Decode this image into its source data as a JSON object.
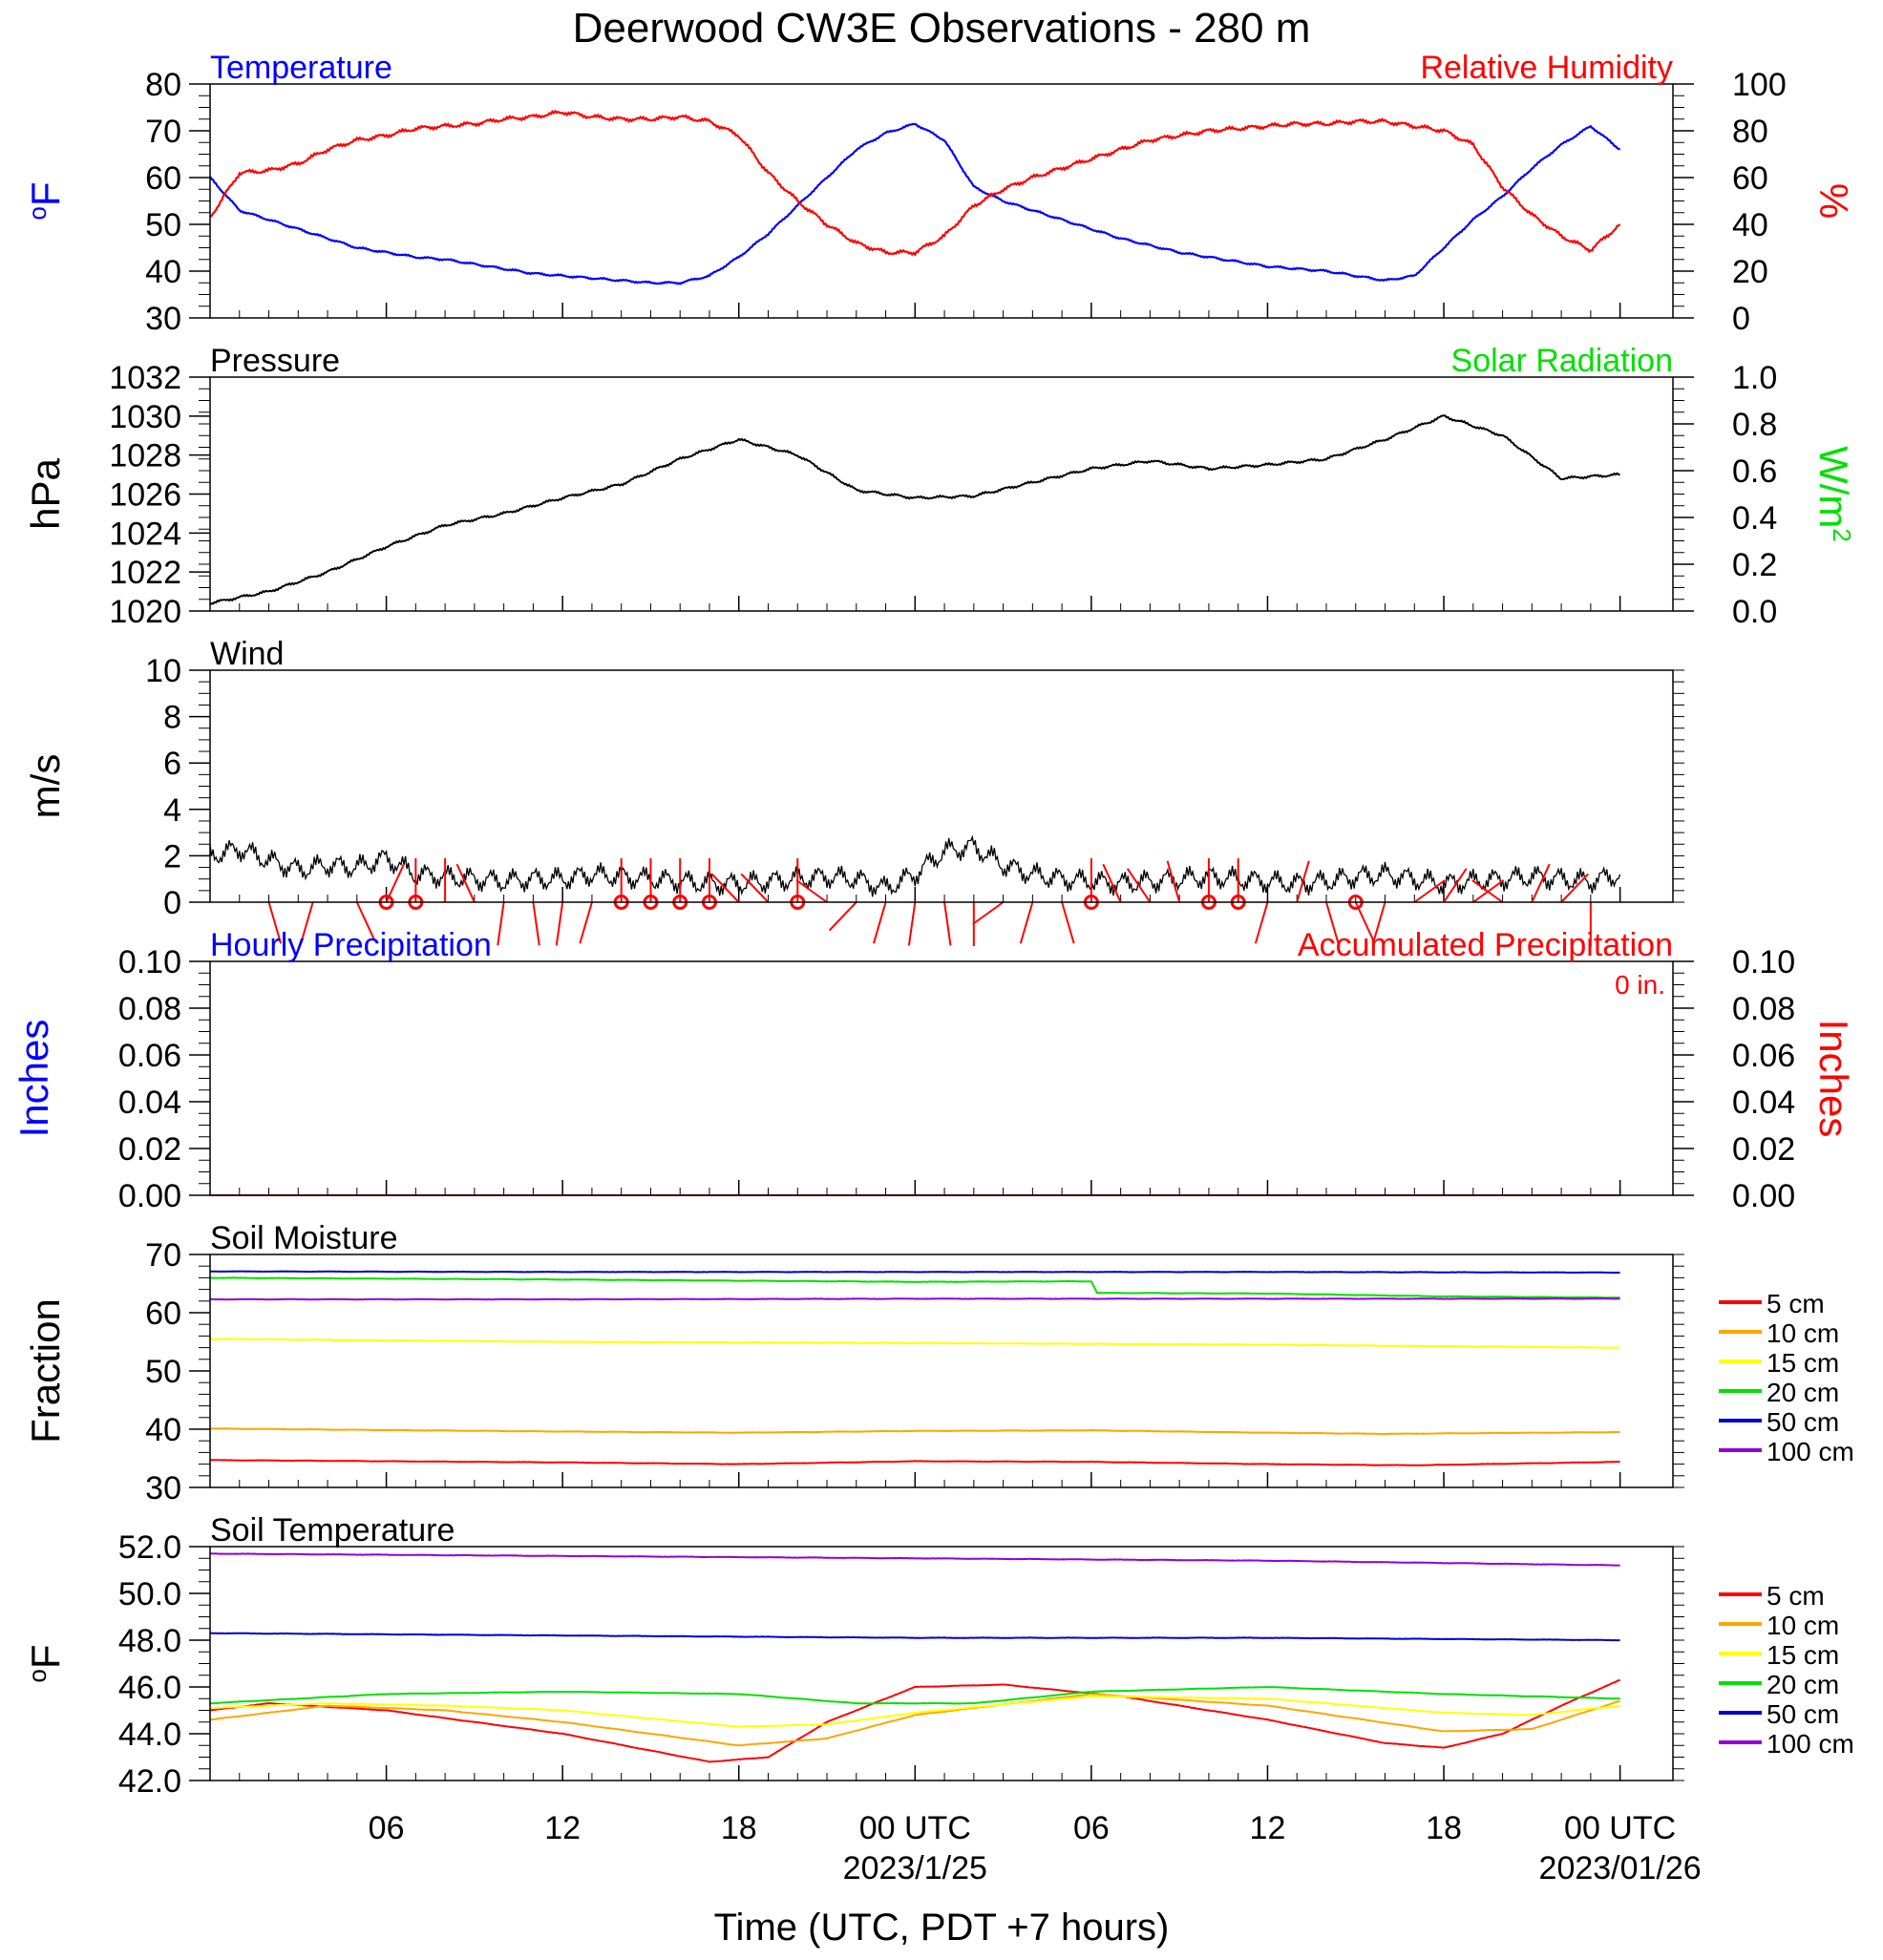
{
  "title": "Deerwood CW3E Observations - 280 m",
  "x_axis": {
    "label": "Time (UTC, PDT +7 hours)",
    "tick_hours": [
      6,
      12,
      18,
      24,
      30,
      36,
      42,
      48
    ],
    "tick_labels": [
      "06",
      "12",
      "18",
      "00 UTC",
      "06",
      "12",
      "18",
      "00 UTC"
    ],
    "date_labels": [
      {
        "hour": 24,
        "text": "2023/1/25"
      },
      {
        "hour": 48,
        "text": "2023/01/26"
      }
    ]
  },
  "colors": {
    "temperature": "#0000ff",
    "humidity": "#ff0000",
    "solar": "#00e000",
    "pressure": "#000000",
    "wind": "#000000",
    "barb": "#ff0000"
  },
  "chart_data": [
    {
      "type": "line",
      "panel": "temperature",
      "title_left": "Temperature",
      "title_right": "Relative Humidity",
      "ylabel_left": "oF",
      "ylabel_right": "%",
      "ylim_left": [
        30,
        80
      ],
      "ylim_right": [
        0,
        100
      ],
      "yticks_left": [
        "30",
        "40",
        "50",
        "60",
        "70",
        "80"
      ],
      "yticks_right": [
        "0",
        "20",
        "40",
        "60",
        "80",
        "100"
      ],
      "series": [
        {
          "name": "Temperature",
          "axis": "left",
          "color": "#0000ff",
          "x": [
            0,
            1,
            2,
            3,
            4,
            5,
            6,
            7,
            8,
            9,
            10,
            11,
            12,
            13,
            14,
            15,
            16,
            17,
            18,
            19,
            20,
            21,
            22,
            23,
            24,
            25,
            26,
            27,
            28,
            29,
            30,
            31,
            32,
            33,
            34,
            35,
            36,
            37,
            38,
            39,
            40,
            41,
            42,
            43,
            44,
            45,
            46,
            47,
            48
          ],
          "y": [
            60,
            53,
            51,
            49,
            47,
            45,
            44,
            43,
            42.5,
            41.5,
            40.5,
            39.5,
            39,
            38.5,
            38,
            37.5,
            37.5,
            39,
            43,
            48,
            54,
            60,
            66,
            69.5,
            71.5,
            68,
            58,
            55,
            53,
            51,
            49,
            47,
            45.5,
            44,
            43,
            42,
            41,
            40.5,
            40,
            39,
            38,
            39,
            45,
            51,
            56,
            62,
            67,
            71,
            66
          ]
        },
        {
          "name": "Relative Humidity",
          "axis": "right",
          "color": "#ff0000",
          "x": [
            0,
            1,
            2,
            3,
            4,
            5,
            6,
            7,
            8,
            9,
            10,
            11,
            12,
            13,
            14,
            15,
            16,
            17,
            18,
            19,
            20,
            21,
            22,
            23,
            24,
            25,
            26,
            27,
            28,
            29,
            30,
            31,
            32,
            33,
            34,
            35,
            36,
            37,
            38,
            39,
            40,
            41,
            42,
            43,
            44,
            45,
            46,
            47,
            48
          ],
          "y": [
            43,
            62,
            63,
            66,
            72,
            76,
            78,
            81,
            82,
            83,
            85,
            86,
            88,
            86,
            85,
            85,
            86,
            84,
            78,
            62,
            50,
            40,
            32,
            28,
            28,
            35,
            48,
            55,
            60,
            64,
            68,
            72,
            76,
            78,
            80,
            81,
            82,
            83,
            83,
            84,
            84,
            82,
            80,
            74,
            56,
            44,
            35,
            29,
            40
          ]
        }
      ]
    },
    {
      "type": "line",
      "panel": "pressure",
      "title_left": "Pressure",
      "title_right": "Solar Radiation",
      "ylabel_left": "hPa",
      "ylabel_right": "W/m2",
      "ylim_left": [
        1020,
        1032
      ],
      "ylim_right": [
        0.0,
        1.0
      ],
      "yticks_left": [
        "1020",
        "1022",
        "1024",
        "1026",
        "1028",
        "1030",
        "1032"
      ],
      "yticks_right": [
        "0.0",
        "0.2",
        "0.4",
        "0.6",
        "0.8",
        "1.0"
      ],
      "series": [
        {
          "name": "Pressure",
          "axis": "left",
          "color": "#000000",
          "x": [
            0,
            2,
            4,
            6,
            8,
            10,
            12,
            14,
            16,
            18,
            20,
            22,
            24,
            26,
            28,
            30,
            32,
            34,
            36,
            38,
            40,
            42,
            44,
            46,
            48
          ],
          "y": [
            1020.4,
            1021.0,
            1022.0,
            1023.3,
            1024.4,
            1025.0,
            1025.8,
            1026.5,
            1027.8,
            1028.8,
            1028.0,
            1026.2,
            1025.8,
            1025.9,
            1026.6,
            1027.3,
            1027.7,
            1027.3,
            1027.5,
            1027.8,
            1028.8,
            1030.0,
            1029.0,
            1026.8,
            1027.0
          ]
        }
      ]
    },
    {
      "type": "line",
      "panel": "wind",
      "title_left": "Wind",
      "ylabel_left": "m/s",
      "ylim_left": [
        0,
        10
      ],
      "yticks_left": [
        "0",
        "2",
        "4",
        "6",
        "8",
        "10"
      ],
      "series": [
        {
          "name": "Wind",
          "axis": "left",
          "color": "#000000",
          "x": [
            0,
            1,
            2,
            3,
            4,
            5,
            6,
            7,
            8,
            9,
            10,
            11,
            12,
            13,
            14,
            15,
            16,
            17,
            18,
            19,
            20,
            21,
            22,
            23,
            24,
            25,
            26,
            27,
            28,
            29,
            30,
            31,
            32,
            33,
            34,
            35,
            36,
            37,
            38,
            39,
            40,
            41,
            42,
            43,
            44,
            45,
            46,
            47,
            48
          ],
          "y": [
            2.0,
            2.3,
            1.8,
            1.4,
            1.6,
            1.5,
            1.9,
            1.2,
            1.1,
            1.0,
            0.9,
            1.0,
            1.0,
            1.2,
            1.1,
            1.0,
            0.9,
            0.8,
            0.8,
            0.9,
            1.0,
            1.1,
            1.0,
            0.6,
            1.2,
            2.2,
            2.4,
            1.6,
            1.2,
            1.0,
            0.9,
            0.8,
            0.9,
            1.0,
            1.1,
            1.0,
            0.9,
            0.8,
            0.9,
            1.1,
            1.2,
            1.0,
            0.8,
            0.9,
            1.0,
            1.1,
            1.0,
            0.9,
            1.2
          ]
        }
      ],
      "barbs_hour": [
        2,
        3.5,
        5,
        6,
        7,
        8,
        9,
        10,
        11,
        12,
        13,
        14,
        15,
        16,
        17,
        18,
        19,
        20,
        21,
        22,
        23,
        24,
        25,
        26,
        27,
        28,
        29,
        30,
        31,
        32,
        33,
        34,
        35,
        36,
        37,
        38,
        39,
        40,
        41,
        42,
        43,
        44,
        45,
        46,
        47
      ],
      "barbs_dir_deg": [
        160,
        200,
        150,
        30,
        0,
        0,
        330,
        190,
        170,
        190,
        200,
        0,
        0,
        0,
        0,
        310,
        310,
        0,
        300,
        230,
        200,
        190,
        170,
        180,
        240,
        200,
        160,
        0,
        330,
        320,
        340,
        0,
        0,
        200,
        20,
        160,
        150,
        200,
        60,
        40,
        60,
        300,
        30,
        50,
        180
      ],
      "calm_hours": [
        6,
        7,
        14,
        15,
        16,
        17,
        20,
        30,
        34,
        35,
        39
      ]
    },
    {
      "type": "line",
      "panel": "precipitation",
      "title_left": "Hourly Precipitation",
      "title_right": "Accumulated Precipitation",
      "total_label": "0 in.",
      "ylabel_left": "Inches",
      "ylabel_right": "Inches",
      "ylim_left": [
        0,
        0.1
      ],
      "ylim_right": [
        0,
        0.1
      ],
      "yticks_left": [
        "0.00",
        "0.02",
        "0.04",
        "0.06",
        "0.08",
        "0.10"
      ],
      "yticks_right": [
        "0.00",
        "0.02",
        "0.04",
        "0.06",
        "0.08",
        "0.10"
      ],
      "series": [
        {
          "name": "Hourly Precipitation",
          "axis": "left",
          "color": "#0000ff",
          "x": [
            0,
            48
          ],
          "y": [
            0,
            0
          ]
        },
        {
          "name": "Accumulated Precipitation",
          "axis": "right",
          "color": "#ff0000",
          "x": [
            0,
            48
          ],
          "y": [
            0,
            0
          ]
        }
      ]
    },
    {
      "type": "line",
      "panel": "soil_moisture",
      "title_left": "Soil Moisture",
      "ylabel_left": "Fraction",
      "ylim_left": [
        30,
        70
      ],
      "yticks_left": [
        "30",
        "40",
        "50",
        "60",
        "70"
      ],
      "series": [
        {
          "name": "5 cm",
          "color": "#ff0000",
          "x": [
            0,
            12,
            18,
            24,
            30,
            36,
            41,
            48
          ],
          "y": [
            34.7,
            34.3,
            34.0,
            34.5,
            34.4,
            34.0,
            33.8,
            34.4
          ]
        },
        {
          "name": "10 cm",
          "color": "#ffa500",
          "x": [
            0,
            12,
            18,
            24,
            30,
            36,
            40,
            48
          ],
          "y": [
            40.1,
            39.6,
            39.4,
            39.7,
            39.8,
            39.4,
            39.2,
            39.5
          ]
        },
        {
          "name": "15 cm",
          "color": "#ffff00",
          "x": [
            0,
            12,
            24,
            36,
            48
          ],
          "y": [
            55.5,
            55.0,
            54.8,
            54.5,
            54.0
          ]
        },
        {
          "name": "20 cm",
          "color": "#00e000",
          "x": [
            0,
            12,
            24,
            30,
            30.2,
            36,
            42,
            48
          ],
          "y": [
            66.0,
            65.7,
            65.3,
            65.4,
            63.4,
            63.3,
            62.8,
            62.6
          ]
        },
        {
          "name": "50 cm",
          "color": "#0000cc",
          "x": [
            0,
            12,
            24,
            36,
            48
          ],
          "y": [
            67.1,
            67.0,
            67.0,
            67.0,
            66.9
          ]
        },
        {
          "name": "100 cm",
          "color": "#9400d3",
          "x": [
            0,
            12,
            24,
            36,
            48
          ],
          "y": [
            62.3,
            62.3,
            62.4,
            62.4,
            62.4
          ]
        }
      ]
    },
    {
      "type": "line",
      "panel": "soil_temperature",
      "title_left": "Soil Temperature",
      "ylabel_left": "oF",
      "ylim_left": [
        42,
        52
      ],
      "yticks_left": [
        "42.0",
        "44.0",
        "46.0",
        "48.0",
        "50.0",
        "52.0"
      ],
      "series": [
        {
          "name": "5 cm",
          "color": "#ff0000",
          "x": [
            0,
            2,
            6,
            12,
            17,
            19,
            21,
            24,
            27,
            31,
            36,
            40,
            42,
            44,
            46,
            48
          ],
          "y": [
            45.0,
            45.3,
            45.0,
            44.0,
            42.8,
            43.0,
            44.5,
            46.0,
            46.1,
            45.6,
            44.6,
            43.6,
            43.4,
            44.0,
            45.2,
            46.3
          ]
        },
        {
          "name": "10 cm",
          "color": "#ffa500",
          "x": [
            0,
            4,
            8,
            12,
            18,
            21,
            24,
            30,
            36,
            42,
            45,
            48
          ],
          "y": [
            44.6,
            45.2,
            45.0,
            44.5,
            43.5,
            43.8,
            44.8,
            45.7,
            45.2,
            44.1,
            44.2,
            45.4
          ]
        },
        {
          "name": "15 cm",
          "color": "#ffff00",
          "x": [
            0,
            4,
            8,
            12,
            18,
            21,
            24,
            30,
            36,
            42,
            45,
            48
          ],
          "y": [
            45.1,
            45.3,
            45.2,
            45.0,
            44.3,
            44.4,
            44.9,
            45.6,
            45.5,
            44.9,
            44.8,
            45.2
          ]
        },
        {
          "name": "20 cm",
          "color": "#00e000",
          "x": [
            0,
            6,
            12,
            18,
            22,
            26,
            30,
            36,
            42,
            48
          ],
          "y": [
            45.3,
            45.7,
            45.8,
            45.7,
            45.3,
            45.3,
            45.8,
            46.0,
            45.7,
            45.5
          ]
        },
        {
          "name": "50 cm",
          "color": "#0000cc",
          "x": [
            0,
            12,
            24,
            36,
            48
          ],
          "y": [
            48.3,
            48.2,
            48.1,
            48.1,
            48.0
          ]
        },
        {
          "name": "100 cm",
          "color": "#9400d3",
          "x": [
            0,
            12,
            24,
            36,
            48
          ],
          "y": [
            51.7,
            51.6,
            51.5,
            51.4,
            51.2
          ]
        }
      ]
    }
  ]
}
